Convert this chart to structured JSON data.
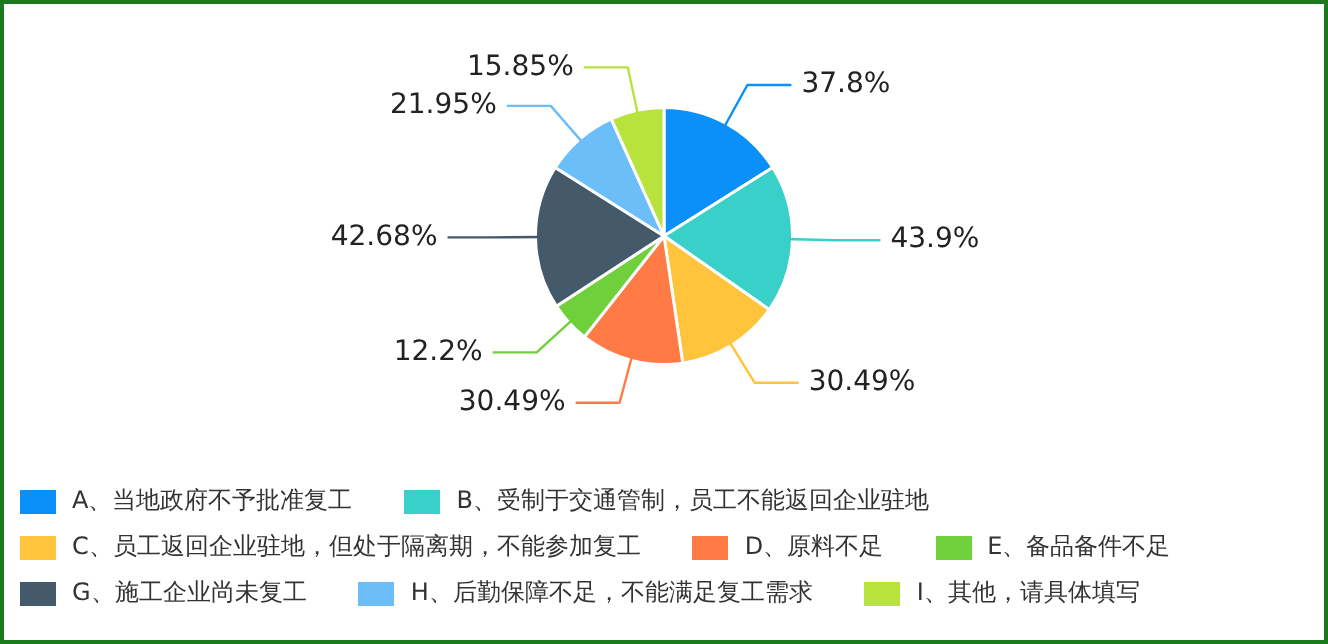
{
  "chart_data": {
    "type": "pie",
    "categories": [
      "A、当地政府不予批准复工",
      "B、受制于交通管制，员工不能返回企业驻地",
      "C、员工返回企业驻地，但处于隔离期，不能参加复工",
      "D、原料不足",
      "E、备品备件不足",
      "G、施工企业尚未复工",
      "H、后勤保障不足，不能满足复工需求",
      "I、其他，请具体填写"
    ],
    "values": [
      37.8,
      43.9,
      30.49,
      30.49,
      12.2,
      42.68,
      21.95,
      15.85
    ],
    "value_labels": [
      "37.8%",
      "43.9%",
      "30.49%",
      "30.49%",
      "12.2%",
      "42.68%",
      "21.95%",
      "15.85%"
    ],
    "colors": [
      "#0a90f8",
      "#38d0c8",
      "#ffc43c",
      "#ff7a45",
      "#6fd03c",
      "#44596a",
      "#6cbef8",
      "#b8e23c"
    ],
    "legend": "bottom"
  }
}
